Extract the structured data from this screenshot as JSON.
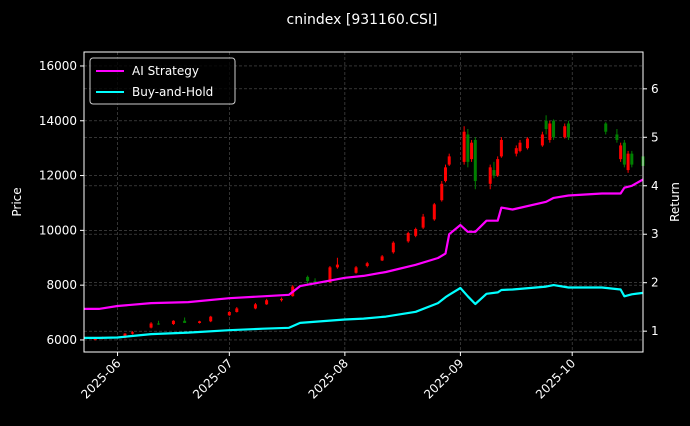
{
  "chart_data": {
    "type": "candlestick+line",
    "title": "cnindex [931160.CSI]",
    "ylabel_left": "Price",
    "ylabel_right": "Return",
    "ylim_left": [
      5560,
      16510
    ],
    "ylim_right": [
      0.57,
      6.76
    ],
    "xlim": [
      "2025-05-23",
      "2025-10-20"
    ],
    "grid": true,
    "legend_placement": "top-left",
    "x_ticks": [
      "2025-06",
      "2025-07",
      "2025-08",
      "2025-09",
      "2025-10"
    ],
    "x_tick_dates": [
      "2025-06-01",
      "2025-07-01",
      "2025-08-01",
      "2025-09-01",
      "2025-10-01"
    ],
    "y_ticks_left": [
      6000,
      8000,
      10000,
      12000,
      14000,
      16000
    ],
    "y_ticks_right": [
      1,
      2,
      3,
      4,
      5,
      6
    ],
    "candle_colors": {
      "up": "#ff0000",
      "down": "#008000"
    },
    "candles": [
      [
        "2025-05-26",
        6000,
        6080,
        5980,
        6050
      ],
      [
        "2025-05-28",
        6050,
        6120,
        6020,
        6080
      ],
      [
        "2025-06-03",
        6080,
        6250,
        6060,
        6230
      ],
      [
        "2025-06-05",
        6230,
        6320,
        6200,
        6280
      ],
      [
        "2025-06-10",
        6450,
        6650,
        6420,
        6600
      ],
      [
        "2025-06-12",
        6600,
        6700,
        6550,
        6580
      ],
      [
        "2025-06-16",
        6580,
        6720,
        6550,
        6700
      ],
      [
        "2025-06-19",
        6700,
        6820,
        6650,
        6620
      ],
      [
        "2025-06-23",
        6620,
        6700,
        6600,
        6680
      ],
      [
        "2025-06-26",
        6680,
        6880,
        6650,
        6850
      ],
      [
        "2025-07-01",
        6900,
        7050,
        6880,
        7020
      ],
      [
        "2025-07-03",
        7020,
        7200,
        7000,
        7150
      ],
      [
        "2025-07-08",
        7150,
        7350,
        7120,
        7300
      ],
      [
        "2025-07-11",
        7300,
        7500,
        7280,
        7450
      ],
      [
        "2025-07-15",
        7450,
        7550,
        7400,
        7500
      ],
      [
        "2025-07-18",
        7600,
        8000,
        7580,
        7950
      ],
      [
        "2025-07-22",
        8300,
        8350,
        8050,
        8150
      ],
      [
        "2025-07-24",
        8150,
        8250,
        8050,
        8100
      ],
      [
        "2025-07-28",
        8100,
        8700,
        8080,
        8650
      ],
      [
        "2025-07-30",
        8650,
        9000,
        8600,
        8750
      ],
      [
        "2025-08-04",
        8450,
        8700,
        8420,
        8650
      ],
      [
        "2025-08-07",
        8700,
        8850,
        8650,
        8800
      ],
      [
        "2025-08-11",
        8900,
        9100,
        8880,
        9050
      ],
      [
        "2025-08-14",
        9200,
        9600,
        9150,
        9550
      ],
      [
        "2025-08-18",
        9600,
        9950,
        9550,
        9900
      ],
      [
        "2025-08-20",
        9800,
        10100,
        9750,
        10050
      ],
      [
        "2025-08-22",
        10100,
        10600,
        10050,
        10500
      ],
      [
        "2025-08-25",
        10400,
        11000,
        10350,
        10950
      ],
      [
        "2025-08-27",
        11100,
        11800,
        11050,
        11700
      ],
      [
        "2025-08-28",
        11800,
        12400,
        11750,
        12300
      ],
      [
        "2025-08-29",
        12400,
        12800,
        12350,
        12700
      ],
      [
        "2025-09-02",
        12500,
        13800,
        12400,
        13600
      ],
      [
        "2025-09-03",
        13500,
        13700,
        12300,
        12500
      ],
      [
        "2025-09-04",
        12600,
        13300,
        12500,
        13200
      ],
      [
        "2025-09-05",
        13300,
        13400,
        11500,
        11800
      ],
      [
        "2025-09-09",
        11700,
        12400,
        11500,
        12300
      ],
      [
        "2025-09-10",
        12200,
        12500,
        11900,
        12000
      ],
      [
        "2025-09-11",
        12000,
        12700,
        11950,
        12600
      ],
      [
        "2025-09-12",
        12700,
        13400,
        12650,
        13300
      ],
      [
        "2025-09-16",
        12800,
        13100,
        12700,
        13000
      ],
      [
        "2025-09-17",
        12900,
        13300,
        12850,
        13200
      ],
      [
        "2025-09-19",
        13000,
        13400,
        12950,
        13350
      ],
      [
        "2025-09-23",
        13100,
        13600,
        13050,
        13500
      ],
      [
        "2025-09-24",
        14000,
        14200,
        13500,
        13700
      ],
      [
        "2025-09-25",
        13300,
        14000,
        13200,
        13900
      ],
      [
        "2025-09-26",
        14000,
        14050,
        13300,
        13400
      ],
      [
        "2025-09-29",
        13400,
        13900,
        13350,
        13800
      ],
      [
        "2025-09-30",
        13900,
        14000,
        13300,
        13400
      ],
      [
        "2025-10-10",
        13900,
        13950,
        13500,
        13600
      ],
      [
        "2025-10-13",
        13500,
        13700,
        13200,
        13300
      ],
      [
        "2025-10-14",
        12600,
        13200,
        12500,
        13100
      ],
      [
        "2025-10-15",
        13200,
        13300,
        12300,
        12400
      ],
      [
        "2025-10-16",
        12200,
        12900,
        12100,
        12800
      ],
      [
        "2025-10-17",
        12800,
        12900,
        12300,
        12400
      ],
      [
        "2025-10-20",
        12700,
        12750,
        12300,
        12350
      ]
    ],
    "series": [
      {
        "name": "AI Strategy",
        "color": "#ff00ff",
        "points": [
          [
            "2025-05-23",
            1.46
          ],
          [
            "2025-05-27",
            1.46
          ],
          [
            "2025-06-01",
            1.52
          ],
          [
            "2025-06-10",
            1.58
          ],
          [
            "2025-06-20",
            1.6
          ],
          [
            "2025-07-01",
            1.68
          ],
          [
            "2025-07-10",
            1.72
          ],
          [
            "2025-07-17",
            1.75
          ],
          [
            "2025-07-20",
            1.93
          ],
          [
            "2025-08-01",
            2.1
          ],
          [
            "2025-08-06",
            2.14
          ],
          [
            "2025-08-12",
            2.22
          ],
          [
            "2025-08-20",
            2.37
          ],
          [
            "2025-08-26",
            2.51
          ],
          [
            "2025-08-28",
            2.6
          ],
          [
            "2025-08-29",
            3.0
          ],
          [
            "2025-09-01",
            3.19
          ],
          [
            "2025-09-03",
            3.05
          ],
          [
            "2025-09-05",
            3.05
          ],
          [
            "2025-09-08",
            3.28
          ],
          [
            "2025-09-11",
            3.28
          ],
          [
            "2025-09-12",
            3.55
          ],
          [
            "2025-09-15",
            3.51
          ],
          [
            "2025-09-24",
            3.67
          ],
          [
            "2025-09-26",
            3.75
          ],
          [
            "2025-09-30",
            3.8
          ],
          [
            "2025-10-09",
            3.84
          ],
          [
            "2025-10-14",
            3.84
          ],
          [
            "2025-10-15",
            3.96
          ],
          [
            "2025-10-17",
            4.0
          ],
          [
            "2025-10-20",
            4.13
          ]
        ]
      },
      {
        "name": "Buy-and-Hold",
        "color": "#00ffff",
        "points": [
          [
            "2025-05-23",
            0.86
          ],
          [
            "2025-05-27",
            0.86
          ],
          [
            "2025-06-01",
            0.87
          ],
          [
            "2025-06-10",
            0.94
          ],
          [
            "2025-06-20",
            0.97
          ],
          [
            "2025-07-01",
            1.02
          ],
          [
            "2025-07-10",
            1.05
          ],
          [
            "2025-07-17",
            1.07
          ],
          [
            "2025-07-20",
            1.17
          ],
          [
            "2025-08-01",
            1.24
          ],
          [
            "2025-08-06",
            1.26
          ],
          [
            "2025-08-12",
            1.3
          ],
          [
            "2025-08-20",
            1.4
          ],
          [
            "2025-08-26",
            1.58
          ],
          [
            "2025-08-28",
            1.7
          ],
          [
            "2025-08-29",
            1.75
          ],
          [
            "2025-09-01",
            1.89
          ],
          [
            "2025-09-03",
            1.72
          ],
          [
            "2025-09-05",
            1.56
          ],
          [
            "2025-09-08",
            1.77
          ],
          [
            "2025-09-11",
            1.8
          ],
          [
            "2025-09-12",
            1.85
          ],
          [
            "2025-09-15",
            1.86
          ],
          [
            "2025-09-24",
            1.92
          ],
          [
            "2025-09-26",
            1.95
          ],
          [
            "2025-09-30",
            1.9
          ],
          [
            "2025-10-09",
            1.9
          ],
          [
            "2025-10-14",
            1.86
          ],
          [
            "2025-10-15",
            1.72
          ],
          [
            "2025-10-17",
            1.76
          ],
          [
            "2025-10-20",
            1.79
          ]
        ]
      }
    ]
  }
}
